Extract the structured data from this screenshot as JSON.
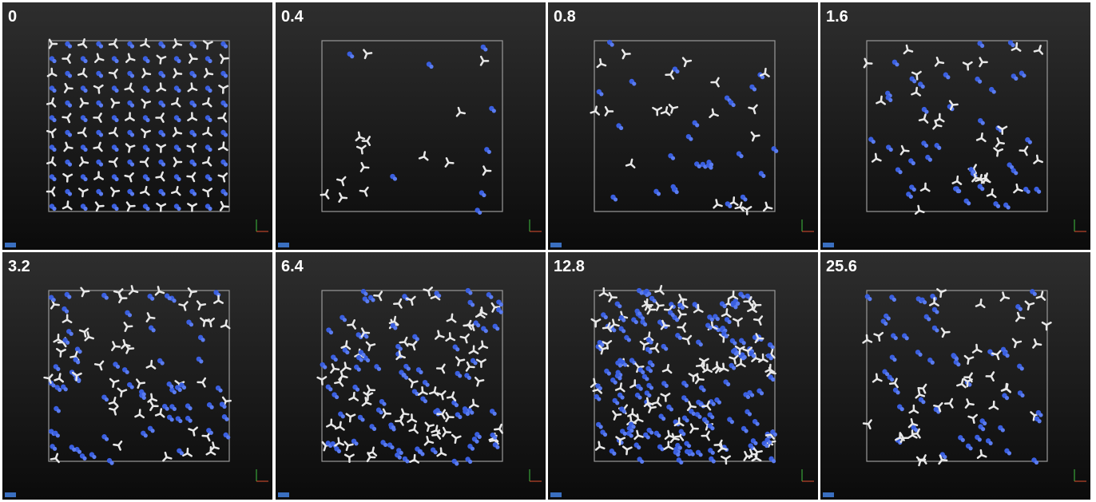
{
  "panels": [
    {
      "label": "0"
    },
    {
      "label": "0.4"
    },
    {
      "label": "0.8"
    },
    {
      "label": "1.6"
    },
    {
      "label": "3.2"
    },
    {
      "label": "6.4"
    },
    {
      "label": "12.8"
    },
    {
      "label": "25.6"
    }
  ]
}
